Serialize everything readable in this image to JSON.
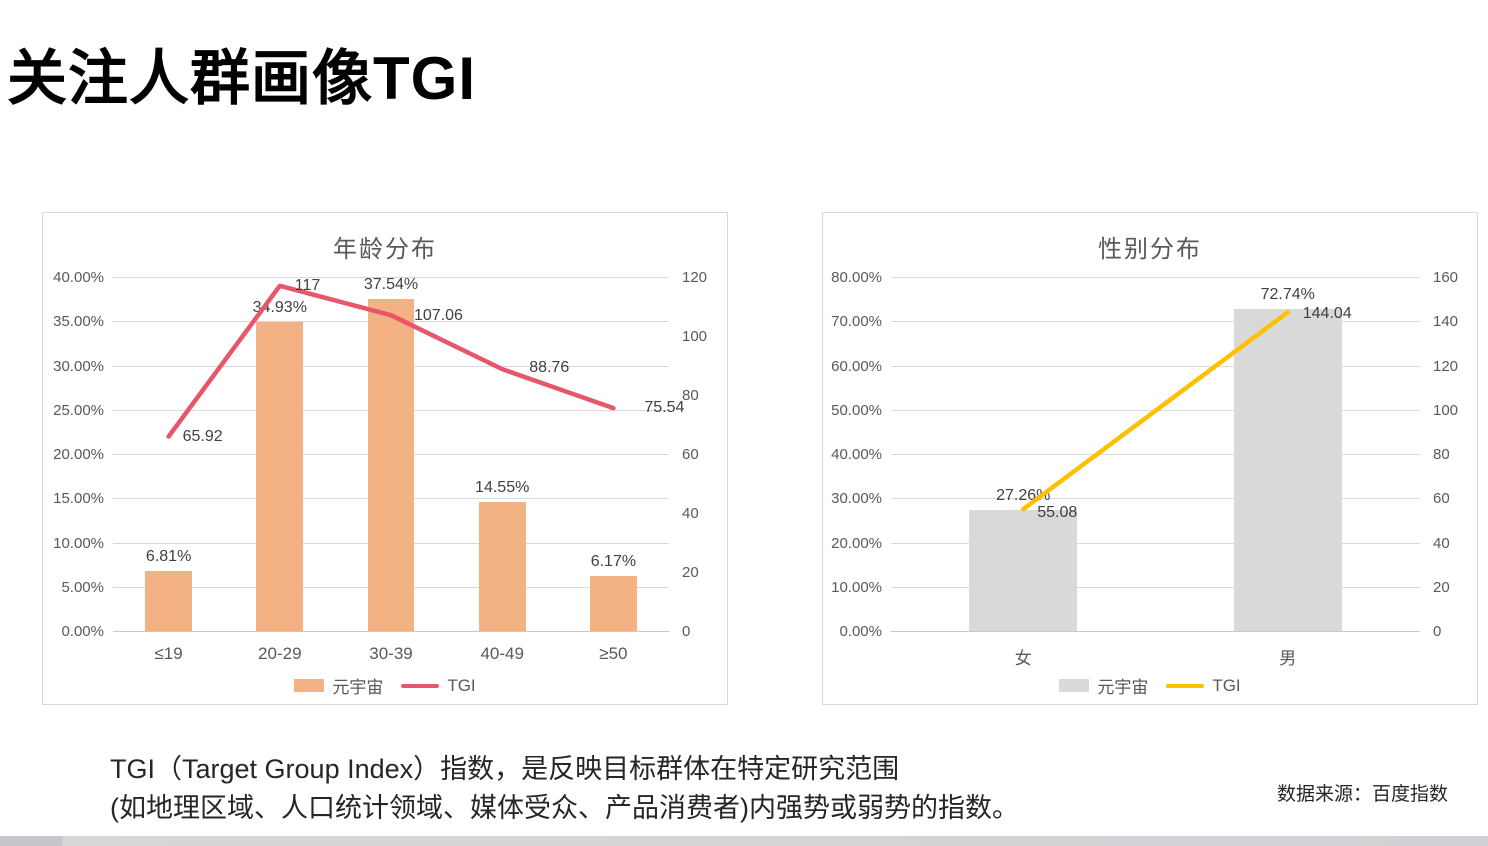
{
  "page": {
    "title": "关注人群画像TGI",
    "description": {
      "line1": "TGI（Target Group Index）指数，是反映目标群体在特定研究范围",
      "line2": "(如地理区域、人口统计领域、媒体受众、产品消费者)内强势或弱势的指数。"
    },
    "source": "数据来源：百度指数"
  },
  "colors": {
    "age_bar": "#F4B183",
    "age_line": "#E8566C",
    "gender_bar": "#D9D9D9",
    "gender_line": "#FFC000",
    "axis_text": "#595959",
    "grid": "#D9D9D9"
  },
  "chart_data": [
    {
      "type": "bar",
      "combo": "bar+line",
      "title": "年龄分布",
      "categories": [
        "≤19",
        "20-29",
        "30-39",
        "40-49",
        "≥50"
      ],
      "series": [
        {
          "name": "元宇宙",
          "type": "bar",
          "axis": "left",
          "color": "#F4B183",
          "values": [
            6.81,
            34.93,
            37.54,
            14.55,
            6.17
          ],
          "labels": [
            "6.81%",
            "34.93%",
            "37.54%",
            "14.55%",
            "6.17%"
          ]
        },
        {
          "name": "TGI",
          "type": "line",
          "axis": "right",
          "color": "#E8566C",
          "values": [
            65.92,
            117,
            107.06,
            88.76,
            75.54
          ],
          "labels": [
            "65.92",
            "117",
            "107.06",
            "88.76",
            "75.54"
          ]
        }
      ],
      "left_axis": {
        "min": 0,
        "max": 40,
        "ticks": [
          "40.00%",
          "35.00%",
          "30.00%",
          "25.00%",
          "20.00%",
          "15.00%",
          "10.00%",
          "5.00%",
          "0.00%"
        ]
      },
      "right_axis": {
        "min": 0,
        "max": 120,
        "ticks": [
          "120",
          "100",
          "80",
          "60",
          "40",
          "20",
          "0"
        ]
      },
      "grid": true,
      "legend_position": "bottom"
    },
    {
      "type": "bar",
      "combo": "bar+line",
      "title": "性别分布",
      "categories": [
        "女",
        "男"
      ],
      "series": [
        {
          "name": "元宇宙",
          "type": "bar",
          "axis": "left",
          "color": "#D9D9D9",
          "values": [
            27.26,
            72.74
          ],
          "labels": [
            "27.26%",
            "72.74%"
          ]
        },
        {
          "name": "TGI",
          "type": "line",
          "axis": "right",
          "color": "#FFC000",
          "values": [
            55.08,
            144.04
          ],
          "labels": [
            "55.08",
            "144.04"
          ]
        }
      ],
      "left_axis": {
        "min": 0,
        "max": 80,
        "ticks": [
          "80.00%",
          "70.00%",
          "60.00%",
          "50.00%",
          "40.00%",
          "30.00%",
          "20.00%",
          "10.00%",
          "0.00%"
        ]
      },
      "right_axis": {
        "min": 0,
        "max": 160,
        "ticks": [
          "160",
          "140",
          "120",
          "100",
          "80",
          "60",
          "40",
          "20",
          "0"
        ]
      },
      "grid": true,
      "legend_position": "bottom"
    }
  ]
}
